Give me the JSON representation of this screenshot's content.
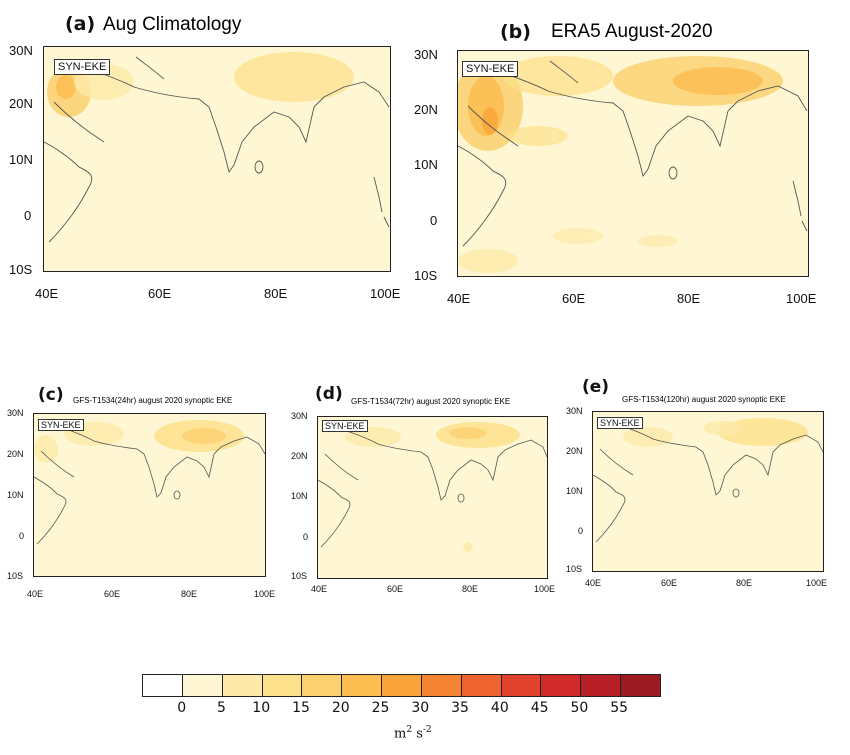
{
  "panels": [
    {
      "id": "a",
      "label": "(a)",
      "title": "Aug Climatology",
      "tag": "SYN-EKE"
    },
    {
      "id": "b",
      "label": "(b)",
      "title": "ERA5 August-2020",
      "tag": "SYN-EKE"
    },
    {
      "id": "c",
      "label": "(c)",
      "title": "GFS-T1534(24hr) august 2020 synoptic EKE",
      "tag": "SYN-EKE"
    },
    {
      "id": "d",
      "label": "(d)",
      "title": "GFS-T1534(72hr) august 2020 synoptic EKE",
      "tag": "SYN-EKE"
    },
    {
      "id": "e",
      "label": "(e)",
      "title": "GFS-T1534(120hr) august 2020 synoptic EKE",
      "tag": "SYN-EKE"
    }
  ],
  "lat_labels": [
    "30N",
    "20N",
    "10N",
    "0",
    "10S"
  ],
  "lon_labels": [
    "40E",
    "60E",
    "80E",
    "100E"
  ],
  "colorbar": {
    "ticks": [
      "0",
      "5",
      "10",
      "15",
      "20",
      "25",
      "30",
      "35",
      "40",
      "45",
      "50",
      "55"
    ],
    "colors": [
      "#ffffff",
      "#fff7d3",
      "#fdeaa8",
      "#fde08c",
      "#fcd06f",
      "#fbbd4f",
      "#f9a33a",
      "#f58433",
      "#ee6430",
      "#e0422e",
      "#d02a2a",
      "#b51f25",
      "#9c1a22"
    ],
    "units_base": "m",
    "units_exp1": "2",
    "units_mid": " s",
    "units_exp2": "-2"
  }
}
